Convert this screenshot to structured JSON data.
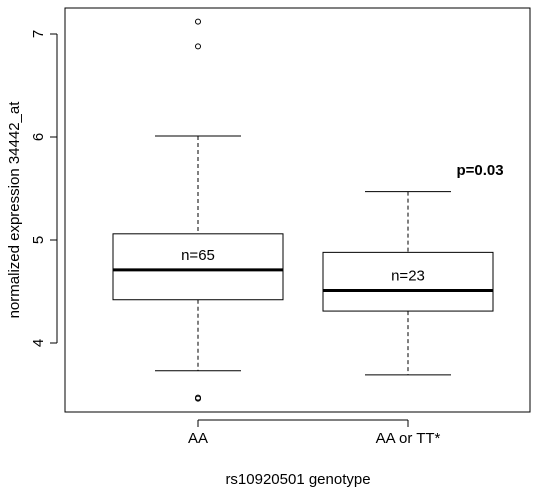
{
  "chart_data": {
    "type": "box",
    "categories": [
      "AA",
      "AA or TT*"
    ],
    "xlabel": "rs10920501 genotype",
    "ylabel": "normalized expression 34442_at",
    "ylim": [
      3.3,
      7.2
    ],
    "yticks": [
      4,
      5,
      6,
      7
    ],
    "grid": false,
    "boxes": [
      {
        "category": "AA",
        "whisker_low": 3.73,
        "q1": 4.42,
        "median": 4.71,
        "q3": 5.06,
        "whisker_high": 6.01,
        "outliers": [
          3.46,
          3.47,
          6.88,
          7.12
        ],
        "label": "n=65"
      },
      {
        "category": "AA or TT*",
        "whisker_low": 3.69,
        "q1": 4.31,
        "median": 4.51,
        "q3": 4.88,
        "whisker_high": 5.47,
        "outliers": [],
        "label": "n=23"
      }
    ],
    "annotation": "p=0.03"
  }
}
